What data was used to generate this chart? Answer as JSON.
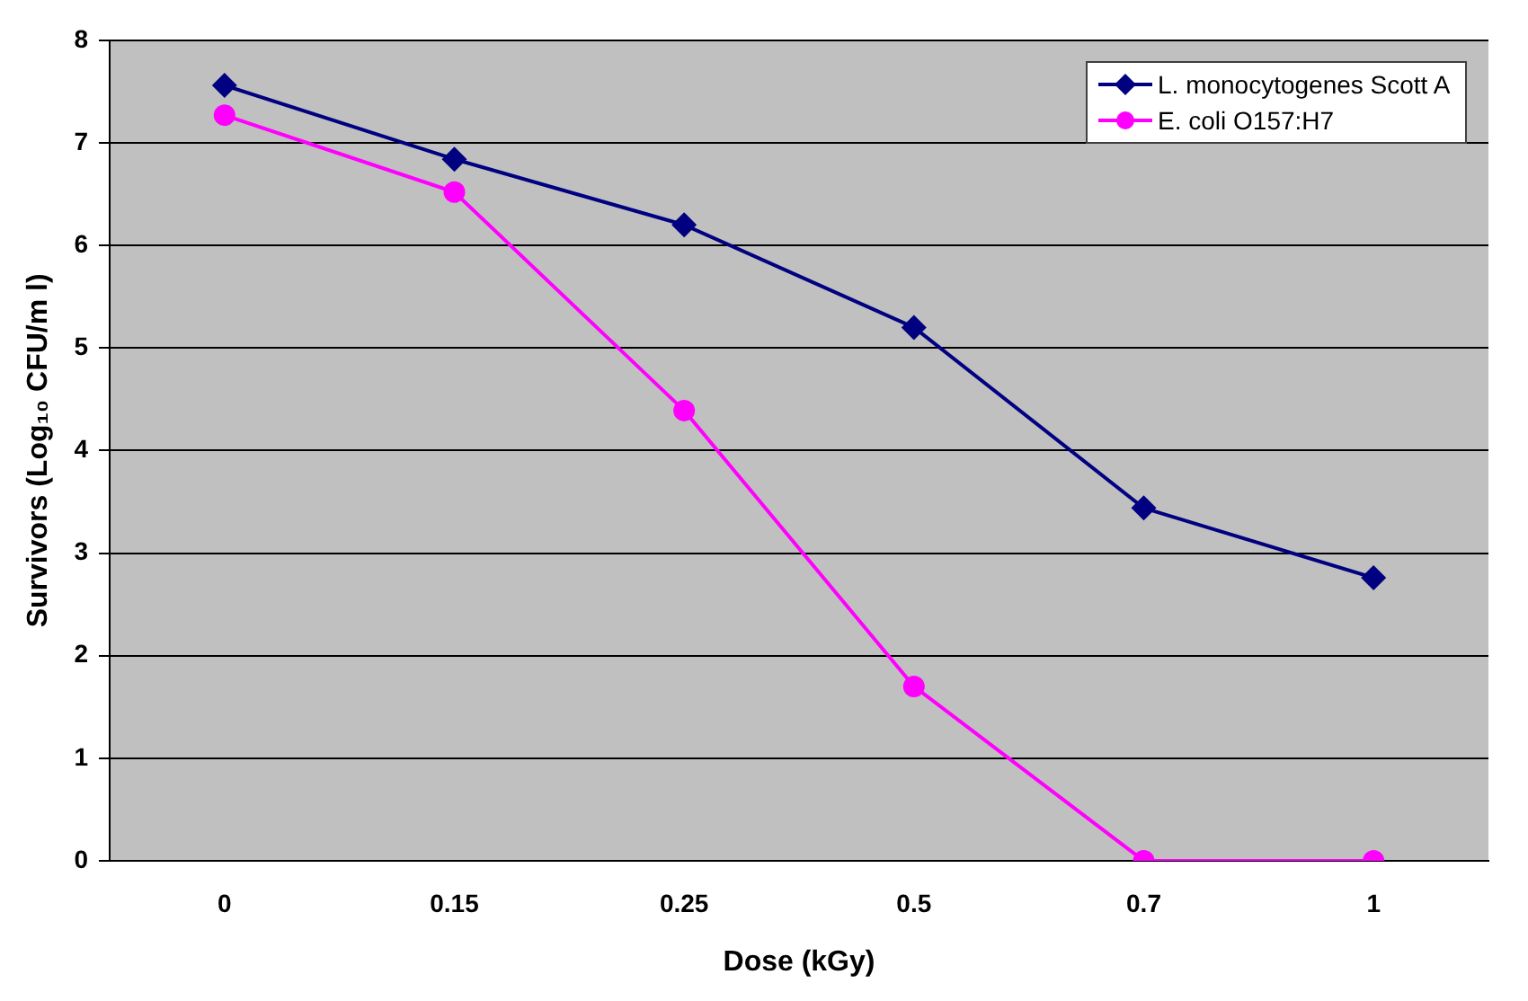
{
  "chart_data": {
    "type": "line",
    "xlabel": "Dose (kGy)",
    "ylabel": "Survivors (Log₁₀ CFU/m l)",
    "categories": [
      "0",
      "0.15",
      "0.25",
      "0.5",
      "0.7",
      "1"
    ],
    "series": [
      {
        "name": "L. monocytogenes Scott A",
        "color": "#000080",
        "marker": "diamond",
        "values": [
          7.56,
          6.84,
          6.2,
          5.2,
          3.44,
          2.76
        ]
      },
      {
        "name": "E. coli O157:H7",
        "color": "#ff00ff",
        "marker": "circle",
        "values": [
          7.27,
          6.52,
          4.39,
          1.7,
          0,
          0
        ]
      }
    ],
    "ylim": [
      0,
      8
    ],
    "yticks": [
      0,
      1,
      2,
      3,
      4,
      5,
      6,
      7,
      8
    ],
    "grid": "y",
    "legend": "top right"
  }
}
